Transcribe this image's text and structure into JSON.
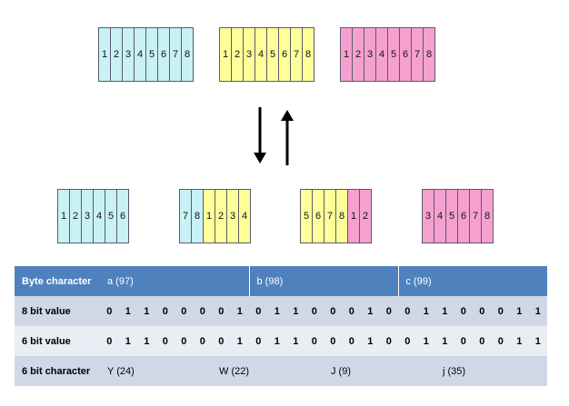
{
  "bytes_row": [
    {
      "color": "#c8f2f6",
      "cells": [
        "1",
        "2",
        "3",
        "4",
        "5",
        "6",
        "7",
        "8"
      ]
    },
    {
      "color": "#ffff99",
      "cells": [
        "1",
        "2",
        "3",
        "4",
        "5",
        "6",
        "7",
        "8"
      ]
    },
    {
      "color": "#f6a0d0",
      "cells": [
        "1",
        "2",
        "3",
        "4",
        "5",
        "6",
        "7",
        "8"
      ]
    }
  ],
  "sextets_row": [
    {
      "cells": [
        {
          "t": "1",
          "c": "blue"
        },
        {
          "t": "2",
          "c": "blue"
        },
        {
          "t": "3",
          "c": "blue"
        },
        {
          "t": "4",
          "c": "blue"
        },
        {
          "t": "5",
          "c": "blue"
        },
        {
          "t": "6",
          "c": "blue"
        }
      ]
    },
    {
      "cells": [
        {
          "t": "7",
          "c": "blue"
        },
        {
          "t": "8",
          "c": "blue"
        },
        {
          "t": "1",
          "c": "yellow"
        },
        {
          "t": "2",
          "c": "yellow"
        },
        {
          "t": "3",
          "c": "yellow"
        },
        {
          "t": "4",
          "c": "yellow"
        }
      ]
    },
    {
      "cells": [
        {
          "t": "5",
          "c": "yellow"
        },
        {
          "t": "6",
          "c": "yellow"
        },
        {
          "t": "7",
          "c": "yellow"
        },
        {
          "t": "8",
          "c": "yellow"
        },
        {
          "t": "1",
          "c": "pink"
        },
        {
          "t": "2",
          "c": "pink"
        }
      ]
    },
    {
      "cells": [
        {
          "t": "3",
          "c": "pink"
        },
        {
          "t": "4",
          "c": "pink"
        },
        {
          "t": "5",
          "c": "pink"
        },
        {
          "t": "6",
          "c": "pink"
        },
        {
          "t": "7",
          "c": "pink"
        },
        {
          "t": "8",
          "c": "pink"
        }
      ]
    }
  ],
  "colors": {
    "blue": "#c8f2f6",
    "yellow": "#ffff99",
    "pink": "#f6a0d0",
    "header": "#4f81bd"
  },
  "table": {
    "byte_label": "Byte character",
    "byte_chars": [
      "a (97)",
      "b (98)",
      "c (99)"
    ],
    "eight_label": "8 bit value",
    "eight_bits": [
      "0",
      "1",
      "1",
      "0",
      "0",
      "0",
      "0",
      "1",
      "0",
      "1",
      "1",
      "0",
      "0",
      "0",
      "1",
      "0",
      "0",
      "1",
      "1",
      "0",
      "0",
      "0",
      "1",
      "1"
    ],
    "six_label": "6 bit value",
    "six_bits": [
      "0",
      "1",
      "1",
      "0",
      "0",
      "0",
      "0",
      "1",
      "0",
      "1",
      "1",
      "0",
      "0",
      "0",
      "1",
      "0",
      "0",
      "1",
      "1",
      "0",
      "0",
      "0",
      "1",
      "1"
    ],
    "char_label": "6 bit character",
    "six_chars": [
      "Y (24)",
      "W (22)",
      "J (9)",
      "j (35)"
    ]
  }
}
